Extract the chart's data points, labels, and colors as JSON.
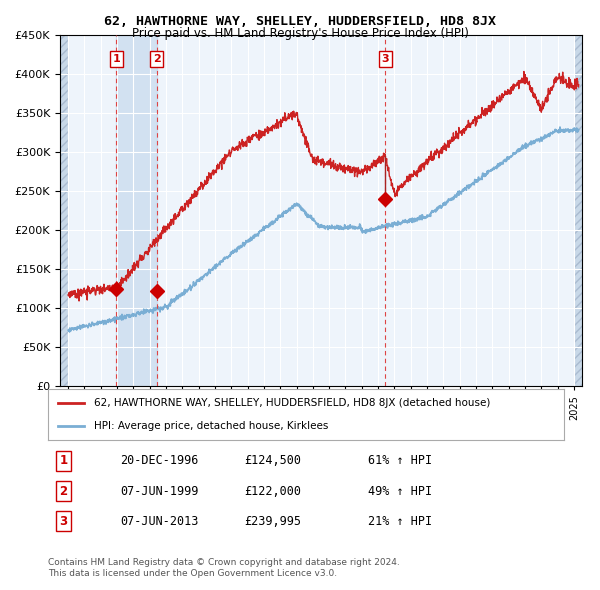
{
  "title": "62, HAWTHORNE WAY, SHELLEY, HUDDERSFIELD, HD8 8JX",
  "subtitle": "Price paid vs. HM Land Registry's House Price Index (HPI)",
  "purchases": [
    {
      "label": "1",
      "date": 1996.96,
      "price": 124500,
      "note": "20-DEC-1996",
      "price_str": "£124,500",
      "hpi_str": "61% ↑ HPI"
    },
    {
      "label": "2",
      "date": 1999.43,
      "price": 122000,
      "note": "07-JUN-1999",
      "price_str": "£122,000",
      "hpi_str": "49% ↑ HPI"
    },
    {
      "label": "3",
      "date": 2013.43,
      "price": 239995,
      "note": "07-JUN-2013",
      "price_str": "£239,995",
      "hpi_str": "21% ↑ HPI"
    }
  ],
  "legend_red": "62, HAWTHORNE WAY, SHELLEY, HUDDERSFIELD, HD8 8JX (detached house)",
  "legend_blue": "HPI: Average price, detached house, Kirklees",
  "footer1": "Contains HM Land Registry data © Crown copyright and database right 2024.",
  "footer2": "This data is licensed under the Open Government Licence v3.0.",
  "ylim": [
    0,
    450000
  ],
  "xlim": [
    1993.5,
    2025.5
  ],
  "bg_color": "#dce9f5",
  "plot_bg": "#eef4fb",
  "grid_color": "#ffffff",
  "hatch_color": "#c8d8e8"
}
